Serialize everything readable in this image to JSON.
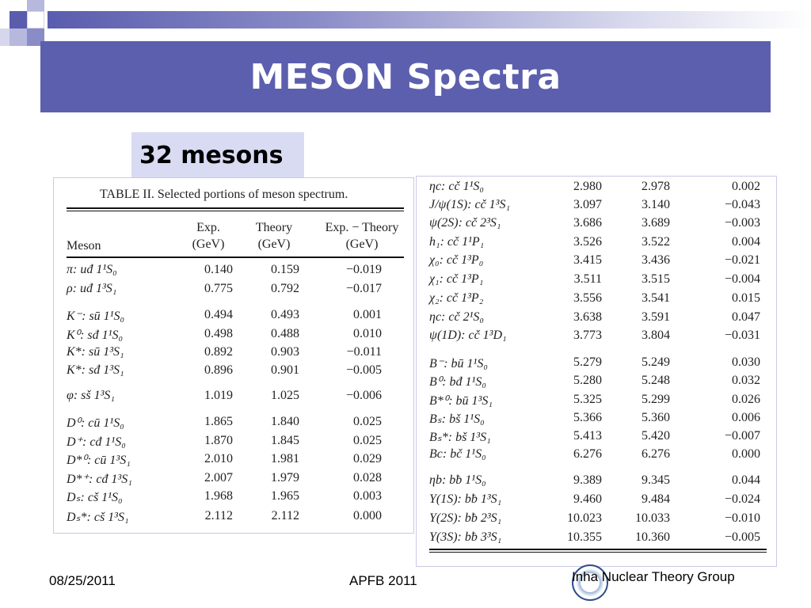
{
  "slide": {
    "title": "MESON Spectra",
    "subtitle": "32 mesons",
    "accent_color": "#5c5fae",
    "subtitle_bg": "#d9dbf3"
  },
  "table_left": {
    "caption": "TABLE II.   Selected portions of meson spectrum.",
    "headers": {
      "meson": "Meson",
      "exp": [
        "Exp.",
        "(GeV)"
      ],
      "theory": [
        "Theory",
        "(GeV)"
      ],
      "diff": [
        "Exp. − Theory",
        "(GeV)"
      ]
    },
    "rows": [
      {
        "meson": "π: uđ 1¹S₀",
        "exp": "0.140",
        "theory": "0.159",
        "diff": "−0.019"
      },
      {
        "meson": "ρ: uđ 1³S₁",
        "exp": "0.775",
        "theory": "0.792",
        "diff": "−0.017"
      },
      {
        "meson": "K⁻: sū 1¹S₀",
        "exp": "0.494",
        "theory": "0.493",
        "diff": "0.001"
      },
      {
        "meson": "K⁰: sđ 1¹S₀",
        "exp": "0.498",
        "theory": "0.488",
        "diff": "0.010"
      },
      {
        "meson": "K*: sū 1³S₁",
        "exp": "0.892",
        "theory": "0.903",
        "diff": "−0.011"
      },
      {
        "meson": "K*: sđ 1³S₁",
        "exp": "0.896",
        "theory": "0.901",
        "diff": "−0.005"
      },
      {
        "meson": "φ: sš 1³S₁",
        "exp": "1.019",
        "theory": "1.025",
        "diff": "−0.006"
      },
      {
        "meson": "D⁰: cū 1¹S₀",
        "exp": "1.865",
        "theory": "1.840",
        "diff": "0.025"
      },
      {
        "meson": "D⁺: cđ 1¹S₀",
        "exp": "1.870",
        "theory": "1.845",
        "diff": "0.025"
      },
      {
        "meson": "D*⁰: cū 1³S₁",
        "exp": "2.010",
        "theory": "1.981",
        "diff": "0.029"
      },
      {
        "meson": "D*⁺: cđ 1³S₁",
        "exp": "2.007",
        "theory": "1.979",
        "diff": "0.028"
      },
      {
        "meson": "Dₛ: cš 1¹S₀",
        "exp": "1.968",
        "theory": "1.965",
        "diff": "0.003"
      },
      {
        "meson": "Dₛ*: cš 1³S₁",
        "exp": "2.112",
        "theory": "2.112",
        "diff": "0.000"
      }
    ]
  },
  "table_right": {
    "rows": [
      {
        "meson": "ηc: cč 1¹S₀",
        "exp": "2.980",
        "theory": "2.978",
        "diff": "0.002"
      },
      {
        "meson": "J/ψ(1S): cč 1³S₁",
        "exp": "3.097",
        "theory": "3.140",
        "diff": "−0.043"
      },
      {
        "meson": "ψ(2S): cč 2³S₁",
        "exp": "3.686",
        "theory": "3.689",
        "diff": "−0.003"
      },
      {
        "meson": "h₁: cč 1¹P₁",
        "exp": "3.526",
        "theory": "3.522",
        "diff": "0.004"
      },
      {
        "meson": "χ₀: cč 1³P₀",
        "exp": "3.415",
        "theory": "3.436",
        "diff": "−0.021"
      },
      {
        "meson": "χ₁: cč 1³P₁",
        "exp": "3.511",
        "theory": "3.515",
        "diff": "−0.004"
      },
      {
        "meson": "χ₂: cč 1³P₂",
        "exp": "3.556",
        "theory": "3.541",
        "diff": "0.015"
      },
      {
        "meson": "ηc: cč 2¹S₀",
        "exp": "3.638",
        "theory": "3.591",
        "diff": "0.047"
      },
      {
        "meson": "ψ(1D): cč 1³D₁",
        "exp": "3.773",
        "theory": "3.804",
        "diff": "−0.031"
      },
      {
        "meson": "B⁻: bū 1¹S₀",
        "exp": "5.279",
        "theory": "5.249",
        "diff": "0.030"
      },
      {
        "meson": "B⁰: bđ 1¹S₀",
        "exp": "5.280",
        "theory": "5.248",
        "diff": "0.032"
      },
      {
        "meson": "B*⁰: bū 1³S₁",
        "exp": "5.325",
        "theory": "5.299",
        "diff": "0.026"
      },
      {
        "meson": "Bₛ: bš 1¹S₀",
        "exp": "5.366",
        "theory": "5.360",
        "diff": "0.006"
      },
      {
        "meson": "Bₛ*: bš 1³S₁",
        "exp": "5.413",
        "theory": "5.420",
        "diff": "−0.007"
      },
      {
        "meson": "Bc: bč 1¹S₀",
        "exp": "6.276",
        "theory": "6.276",
        "diff": "0.000"
      },
      {
        "meson": "ηb: bƀ 1¹S₀",
        "exp": "9.389",
        "theory": "9.345",
        "diff": "0.044"
      },
      {
        "meson": "Υ(1S): bƀ 1³S₁",
        "exp": "9.460",
        "theory": "9.484",
        "diff": "−0.024"
      },
      {
        "meson": "Υ(2S): bƀ 2³S₁",
        "exp": "10.023",
        "theory": "10.033",
        "diff": "−0.010"
      },
      {
        "meson": "Υ(3S): bƀ 3³S₁",
        "exp": "10.355",
        "theory": "10.360",
        "diff": "−0.005"
      }
    ]
  },
  "footer": {
    "date": "08/25/2011",
    "conference": "APFB 2011",
    "group": "Inha Nuclear Theory Group"
  }
}
